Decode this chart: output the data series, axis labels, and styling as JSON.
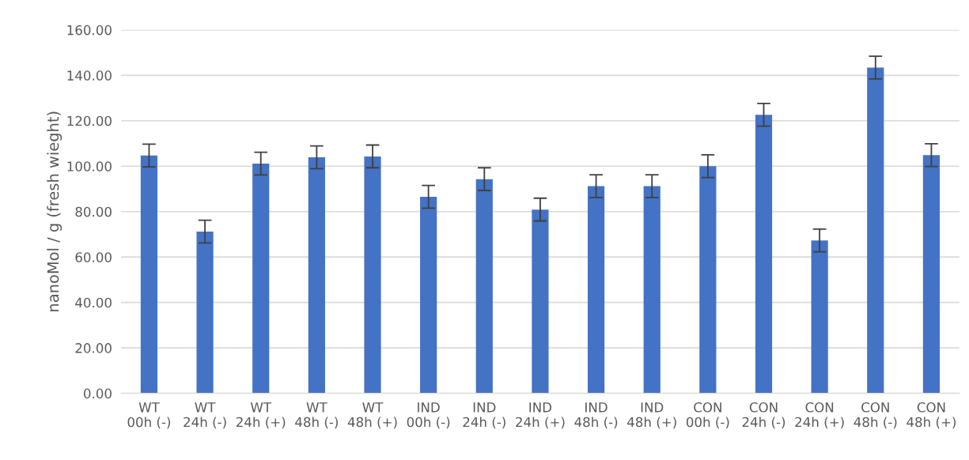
{
  "chart_data": {
    "type": "bar",
    "ylabel": "nanoMol / g (fresh wieght)",
    "categories": [
      "WT\n00h (-)",
      "WT\n24h (-)",
      "WT\n24h (+)",
      "WT\n48h (-)",
      "WT\n48h (+)",
      "IND\n00h (-)",
      "IND\n24h (-)",
      "IND\n24h (+)",
      "IND\n48h (-)",
      "IND\n48h (+)",
      "CON\n00h (-)",
      "CON\n24h (-)",
      "CON\n24h (+)",
      "CON\n48h (-)",
      "CON\n48h (+)"
    ],
    "values": [
      104.7,
      71.2,
      101.1,
      103.9,
      104.3,
      86.5,
      94.3,
      80.9,
      91.2,
      91.2,
      100.0,
      122.6,
      67.3,
      143.4,
      104.9
    ],
    "errors": [
      5,
      5,
      5,
      5,
      5,
      5,
      5,
      5,
      5,
      5,
      5,
      5,
      5,
      5,
      5
    ],
    "color": "#4472c4",
    "ylim": [
      0,
      160
    ],
    "yticks": [
      {
        "value": 0,
        "label": "0.00"
      },
      {
        "value": 20,
        "label": "20.00"
      },
      {
        "value": 40,
        "label": "40.00"
      },
      {
        "value": 60,
        "label": "60.00"
      },
      {
        "value": 80,
        "label": "80.00"
      },
      {
        "value": 100,
        "label": "100.00"
      },
      {
        "value": 120,
        "label": "120.00"
      },
      {
        "value": 140,
        "label": "140.00"
      },
      {
        "value": 160,
        "label": "160.00"
      }
    ],
    "grid": "y",
    "legend": false
  }
}
